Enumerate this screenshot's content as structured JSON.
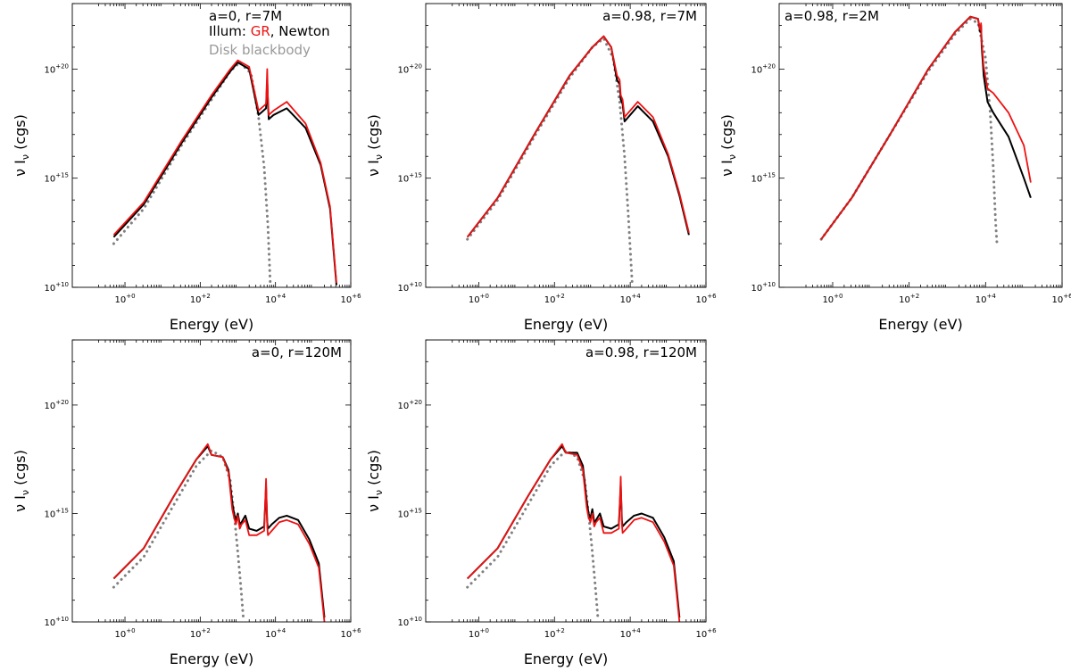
{
  "figure": {
    "legend": {
      "prefix": "Illum: ",
      "gr_label": "GR",
      "separator": ", ",
      "newton_label": "Newton",
      "disk_label": "Disk blackbody"
    },
    "colors": {
      "gr": "#ee1111",
      "newton": "#000000",
      "disk": "#808080",
      "disk_text": "#999999",
      "axis": "#000000"
    }
  },
  "chart_data": [
    {
      "type": "line",
      "title": "a=0, r=7M",
      "xlabel": "Energy (eV)",
      "ylabel": "ν Iν (cgs)",
      "xscale": "log10",
      "yscale": "log10",
      "xlim": [
        -1.4,
        6
      ],
      "ylim": [
        10,
        23
      ],
      "xticks": [
        0,
        2,
        4,
        6
      ],
      "xtick_labels": [
        "10+0",
        "10+2",
        "10+4",
        "10+6"
      ],
      "yticks": [
        10,
        15,
        20
      ],
      "ytick_labels": [
        "10+10",
        "10+15",
        "10+20"
      ],
      "series": [
        {
          "name": "Disk blackbody",
          "style": "dotted",
          "x": [
            -0.3,
            0.5,
            1.5,
            2.3,
            2.8,
            3.05,
            3.35,
            3.55,
            3.7,
            3.8,
            3.86
          ],
          "y": [
            12.0,
            13.6,
            16.5,
            18.6,
            19.9,
            20.3,
            19.8,
            17.8,
            15.5,
            12.8,
            10.2
          ]
        },
        {
          "name": "Newton",
          "style": "solid",
          "x": [
            -0.3,
            0.5,
            1.5,
            2.3,
            2.8,
            3.0,
            3.3,
            3.55,
            3.75,
            3.78,
            3.8,
            3.82,
            3.95,
            4.3,
            4.8,
            5.2,
            5.45,
            5.62
          ],
          "y": [
            12.3,
            13.8,
            16.6,
            18.7,
            19.9,
            20.3,
            20.0,
            17.9,
            18.2,
            19.5,
            18.5,
            17.7,
            17.9,
            18.2,
            17.3,
            15.6,
            13.6,
            10.1
          ]
        },
        {
          "name": "GR",
          "style": "solid",
          "x": [
            -0.3,
            0.5,
            1.5,
            2.3,
            2.8,
            3.0,
            3.3,
            3.55,
            3.75,
            3.78,
            3.8,
            3.82,
            3.95,
            4.3,
            4.8,
            5.2,
            5.45,
            5.62
          ],
          "y": [
            12.4,
            13.9,
            16.7,
            18.8,
            20.0,
            20.4,
            20.1,
            18.1,
            18.4,
            20.0,
            18.7,
            17.9,
            18.1,
            18.5,
            17.5,
            15.7,
            13.7,
            10.2
          ]
        }
      ]
    },
    {
      "type": "line",
      "title": "a=0.98, r=7M",
      "xlabel": "Energy (eV)",
      "ylabel": "ν Iν (cgs)",
      "xscale": "log10",
      "yscale": "log10",
      "xlim": [
        -1.4,
        6
      ],
      "ylim": [
        10,
        23
      ],
      "xticks": [
        0,
        2,
        4,
        6
      ],
      "xtick_labels": [
        "10+0",
        "10+2",
        "10+4",
        "10+6"
      ],
      "yticks": [
        10,
        15,
        20
      ],
      "ytick_labels": [
        "10+10",
        "10+15",
        "10+20"
      ],
      "series": [
        {
          "name": "Disk blackbody",
          "style": "dotted",
          "x": [
            -0.3,
            0.5,
            1.5,
            2.4,
            3.0,
            3.3,
            3.55,
            3.72,
            3.85,
            3.95,
            4.05
          ],
          "y": [
            12.2,
            14.0,
            17.0,
            19.6,
            21.0,
            21.4,
            20.5,
            18.5,
            16.0,
            13.3,
            10.2
          ]
        },
        {
          "name": "Newton",
          "style": "solid",
          "x": [
            -0.3,
            0.5,
            1.5,
            2.4,
            3.0,
            3.3,
            3.5,
            3.65,
            3.72,
            3.75,
            3.8,
            3.85,
            4.2,
            4.6,
            5.0,
            5.3,
            5.55
          ],
          "y": [
            12.3,
            14.1,
            17.1,
            19.7,
            21.0,
            21.5,
            21.0,
            19.5,
            19.3,
            18.6,
            18.4,
            17.6,
            18.3,
            17.6,
            16.0,
            14.2,
            12.4
          ]
        },
        {
          "name": "GR",
          "style": "solid",
          "x": [
            -0.3,
            0.5,
            1.5,
            2.4,
            3.0,
            3.3,
            3.5,
            3.65,
            3.72,
            3.75,
            3.8,
            3.85,
            4.2,
            4.6,
            5.0,
            5.3,
            5.55
          ],
          "y": [
            12.3,
            14.1,
            17.1,
            19.7,
            21.0,
            21.5,
            21.0,
            19.7,
            19.5,
            18.8,
            18.6,
            17.8,
            18.5,
            17.8,
            16.1,
            14.3,
            12.5
          ]
        }
      ]
    },
    {
      "type": "line",
      "title": "a=0.98, r=2M",
      "xlabel": "Energy (eV)",
      "ylabel": "ν Iν (cgs)",
      "xscale": "log10",
      "yscale": "log10",
      "xlim": [
        -1.4,
        6
      ],
      "ylim": [
        10,
        23
      ],
      "xticks": [
        0,
        2,
        4,
        6
      ],
      "xtick_labels": [
        "10+0",
        "10+2",
        "10+4",
        "10+6"
      ],
      "yticks": [
        10,
        15,
        20
      ],
      "ytick_labels": [
        "10+10",
        "10+15",
        "10+20"
      ],
      "series": [
        {
          "name": "Disk blackbody",
          "style": "dotted",
          "x": [
            -0.3,
            0.5,
            1.5,
            2.5,
            3.2,
            3.6,
            3.8,
            4.0,
            4.12,
            4.2,
            4.26,
            4.3
          ],
          "y": [
            12.2,
            14.1,
            17.0,
            19.9,
            21.6,
            22.3,
            22.1,
            20.5,
            18.0,
            15.5,
            13.0,
            11.9
          ]
        },
        {
          "name": "Newton",
          "style": "solid",
          "x": [
            -0.3,
            0.5,
            1.5,
            2.5,
            3.2,
            3.6,
            3.8,
            3.86,
            3.88,
            3.9,
            3.95,
            4.05,
            4.2,
            4.6,
            5.0,
            5.18
          ],
          "y": [
            12.2,
            14.1,
            17.0,
            20.0,
            21.7,
            22.4,
            22.3,
            21.7,
            22.0,
            21.0,
            19.7,
            18.5,
            18.0,
            16.9,
            15.0,
            14.1
          ]
        },
        {
          "name": "GR",
          "style": "solid",
          "x": [
            -0.3,
            0.5,
            1.5,
            2.5,
            3.2,
            3.6,
            3.8,
            3.86,
            3.88,
            3.9,
            3.95,
            4.05,
            4.2,
            4.6,
            5.0,
            5.18
          ],
          "y": [
            12.2,
            14.1,
            17.0,
            20.0,
            21.7,
            22.4,
            22.3,
            21.8,
            22.1,
            21.2,
            20.1,
            19.1,
            18.9,
            18.0,
            16.5,
            14.8
          ]
        }
      ]
    },
    {
      "type": "line",
      "title": "a=0, r=120M",
      "xlabel": "Energy (eV)",
      "ylabel": "ν Iν (cgs)",
      "xscale": "log10",
      "yscale": "log10",
      "xlim": [
        -1.4,
        6
      ],
      "ylim": [
        10,
        23
      ],
      "xticks": [
        0,
        2,
        4,
        6
      ],
      "xtick_labels": [
        "10+0",
        "10+2",
        "10+4",
        "10+6"
      ],
      "yticks": [
        10,
        15,
        20
      ],
      "ytick_labels": [
        "10+10",
        "10+15",
        "10+20"
      ],
      "series": [
        {
          "name": "Disk blackbody",
          "style": "dotted",
          "x": [
            -0.3,
            0.5,
            1.3,
            1.9,
            2.3,
            2.6,
            2.8,
            2.9,
            3.0,
            3.08,
            3.15
          ],
          "y": [
            11.6,
            13.0,
            15.4,
            17.2,
            17.9,
            17.6,
            16.5,
            15.0,
            13.2,
            11.6,
            10.1
          ]
        },
        {
          "name": "Newton",
          "style": "solid",
          "x": [
            -0.3,
            0.5,
            1.3,
            1.9,
            2.2,
            2.3,
            2.6,
            2.75,
            2.85,
            2.9,
            2.95,
            3.0,
            3.05,
            3.1,
            3.2,
            3.3,
            3.5,
            3.6,
            3.7,
            3.75,
            3.78,
            3.8,
            3.9,
            4.1,
            4.3,
            4.6,
            4.9,
            5.15,
            5.3
          ],
          "y": [
            12.0,
            13.4,
            15.8,
            17.5,
            18.1,
            17.7,
            17.6,
            17.0,
            15.5,
            15.0,
            14.7,
            15.0,
            14.5,
            14.6,
            14.9,
            14.3,
            14.2,
            14.3,
            14.4,
            16.2,
            14.6,
            14.3,
            14.5,
            14.8,
            14.9,
            14.7,
            13.8,
            12.7,
            10.2
          ]
        },
        {
          "name": "GR",
          "style": "solid",
          "x": [
            -0.3,
            0.5,
            1.3,
            1.9,
            2.2,
            2.3,
            2.6,
            2.75,
            2.85,
            2.9,
            2.95,
            3.0,
            3.05,
            3.1,
            3.2,
            3.3,
            3.5,
            3.6,
            3.7,
            3.75,
            3.78,
            3.8,
            3.9,
            4.1,
            4.3,
            4.6,
            4.9,
            5.15,
            5.3
          ],
          "y": [
            12.0,
            13.4,
            15.8,
            17.5,
            18.2,
            17.7,
            17.6,
            16.9,
            15.2,
            14.8,
            14.5,
            14.9,
            14.3,
            14.5,
            14.7,
            14.0,
            14.0,
            14.1,
            14.2,
            16.6,
            14.4,
            14.0,
            14.2,
            14.6,
            14.7,
            14.5,
            13.6,
            12.5,
            10.0
          ]
        }
      ]
    },
    {
      "type": "line",
      "title": "a=0.98, r=120M",
      "xlabel": "Energy (eV)",
      "ylabel": "ν Iν (cgs)",
      "xscale": "log10",
      "yscale": "log10",
      "xlim": [
        -1.4,
        6
      ],
      "ylim": [
        10,
        23
      ],
      "xticks": [
        0,
        2,
        4,
        6
      ],
      "xtick_labels": [
        "10+0",
        "10+2",
        "10+4",
        "10+6"
      ],
      "yticks": [
        10,
        15,
        20
      ],
      "ytick_labels": [
        "10+10",
        "10+15",
        "10+20"
      ],
      "series": [
        {
          "name": "Disk blackbody",
          "style": "dotted",
          "x": [
            -0.3,
            0.5,
            1.3,
            1.9,
            2.3,
            2.6,
            2.8,
            2.9,
            3.0,
            3.08,
            3.15
          ],
          "y": [
            11.6,
            13.0,
            15.4,
            17.2,
            17.9,
            17.6,
            16.5,
            15.0,
            13.2,
            11.6,
            10.1
          ]
        },
        {
          "name": "Newton",
          "style": "solid",
          "x": [
            -0.3,
            0.5,
            1.3,
            1.9,
            2.2,
            2.3,
            2.6,
            2.75,
            2.85,
            2.9,
            2.95,
            3.0,
            3.05,
            3.1,
            3.2,
            3.3,
            3.5,
            3.6,
            3.7,
            3.75,
            3.78,
            3.8,
            3.9,
            4.1,
            4.3,
            4.6,
            4.9,
            5.15,
            5.3
          ],
          "y": [
            12.0,
            13.4,
            15.8,
            17.5,
            18.1,
            17.8,
            17.8,
            17.2,
            15.6,
            15.0,
            14.8,
            15.2,
            14.6,
            14.7,
            15.0,
            14.4,
            14.3,
            14.4,
            14.5,
            16.3,
            14.7,
            14.4,
            14.6,
            14.9,
            15.0,
            14.8,
            13.9,
            12.8,
            10.2
          ]
        },
        {
          "name": "GR",
          "style": "solid",
          "x": [
            -0.3,
            0.5,
            1.3,
            1.9,
            2.2,
            2.3,
            2.6,
            2.75,
            2.85,
            2.9,
            2.95,
            3.0,
            3.05,
            3.1,
            3.2,
            3.3,
            3.5,
            3.6,
            3.7,
            3.75,
            3.78,
            3.8,
            3.9,
            4.1,
            4.3,
            4.6,
            4.9,
            5.15,
            5.3
          ],
          "y": [
            12.0,
            13.4,
            15.8,
            17.5,
            18.2,
            17.8,
            17.7,
            17.0,
            15.3,
            14.8,
            14.6,
            15.0,
            14.4,
            14.6,
            14.8,
            14.1,
            14.1,
            14.2,
            14.3,
            16.7,
            14.5,
            14.1,
            14.3,
            14.7,
            14.8,
            14.6,
            13.7,
            12.6,
            10.0
          ]
        }
      ]
    }
  ]
}
